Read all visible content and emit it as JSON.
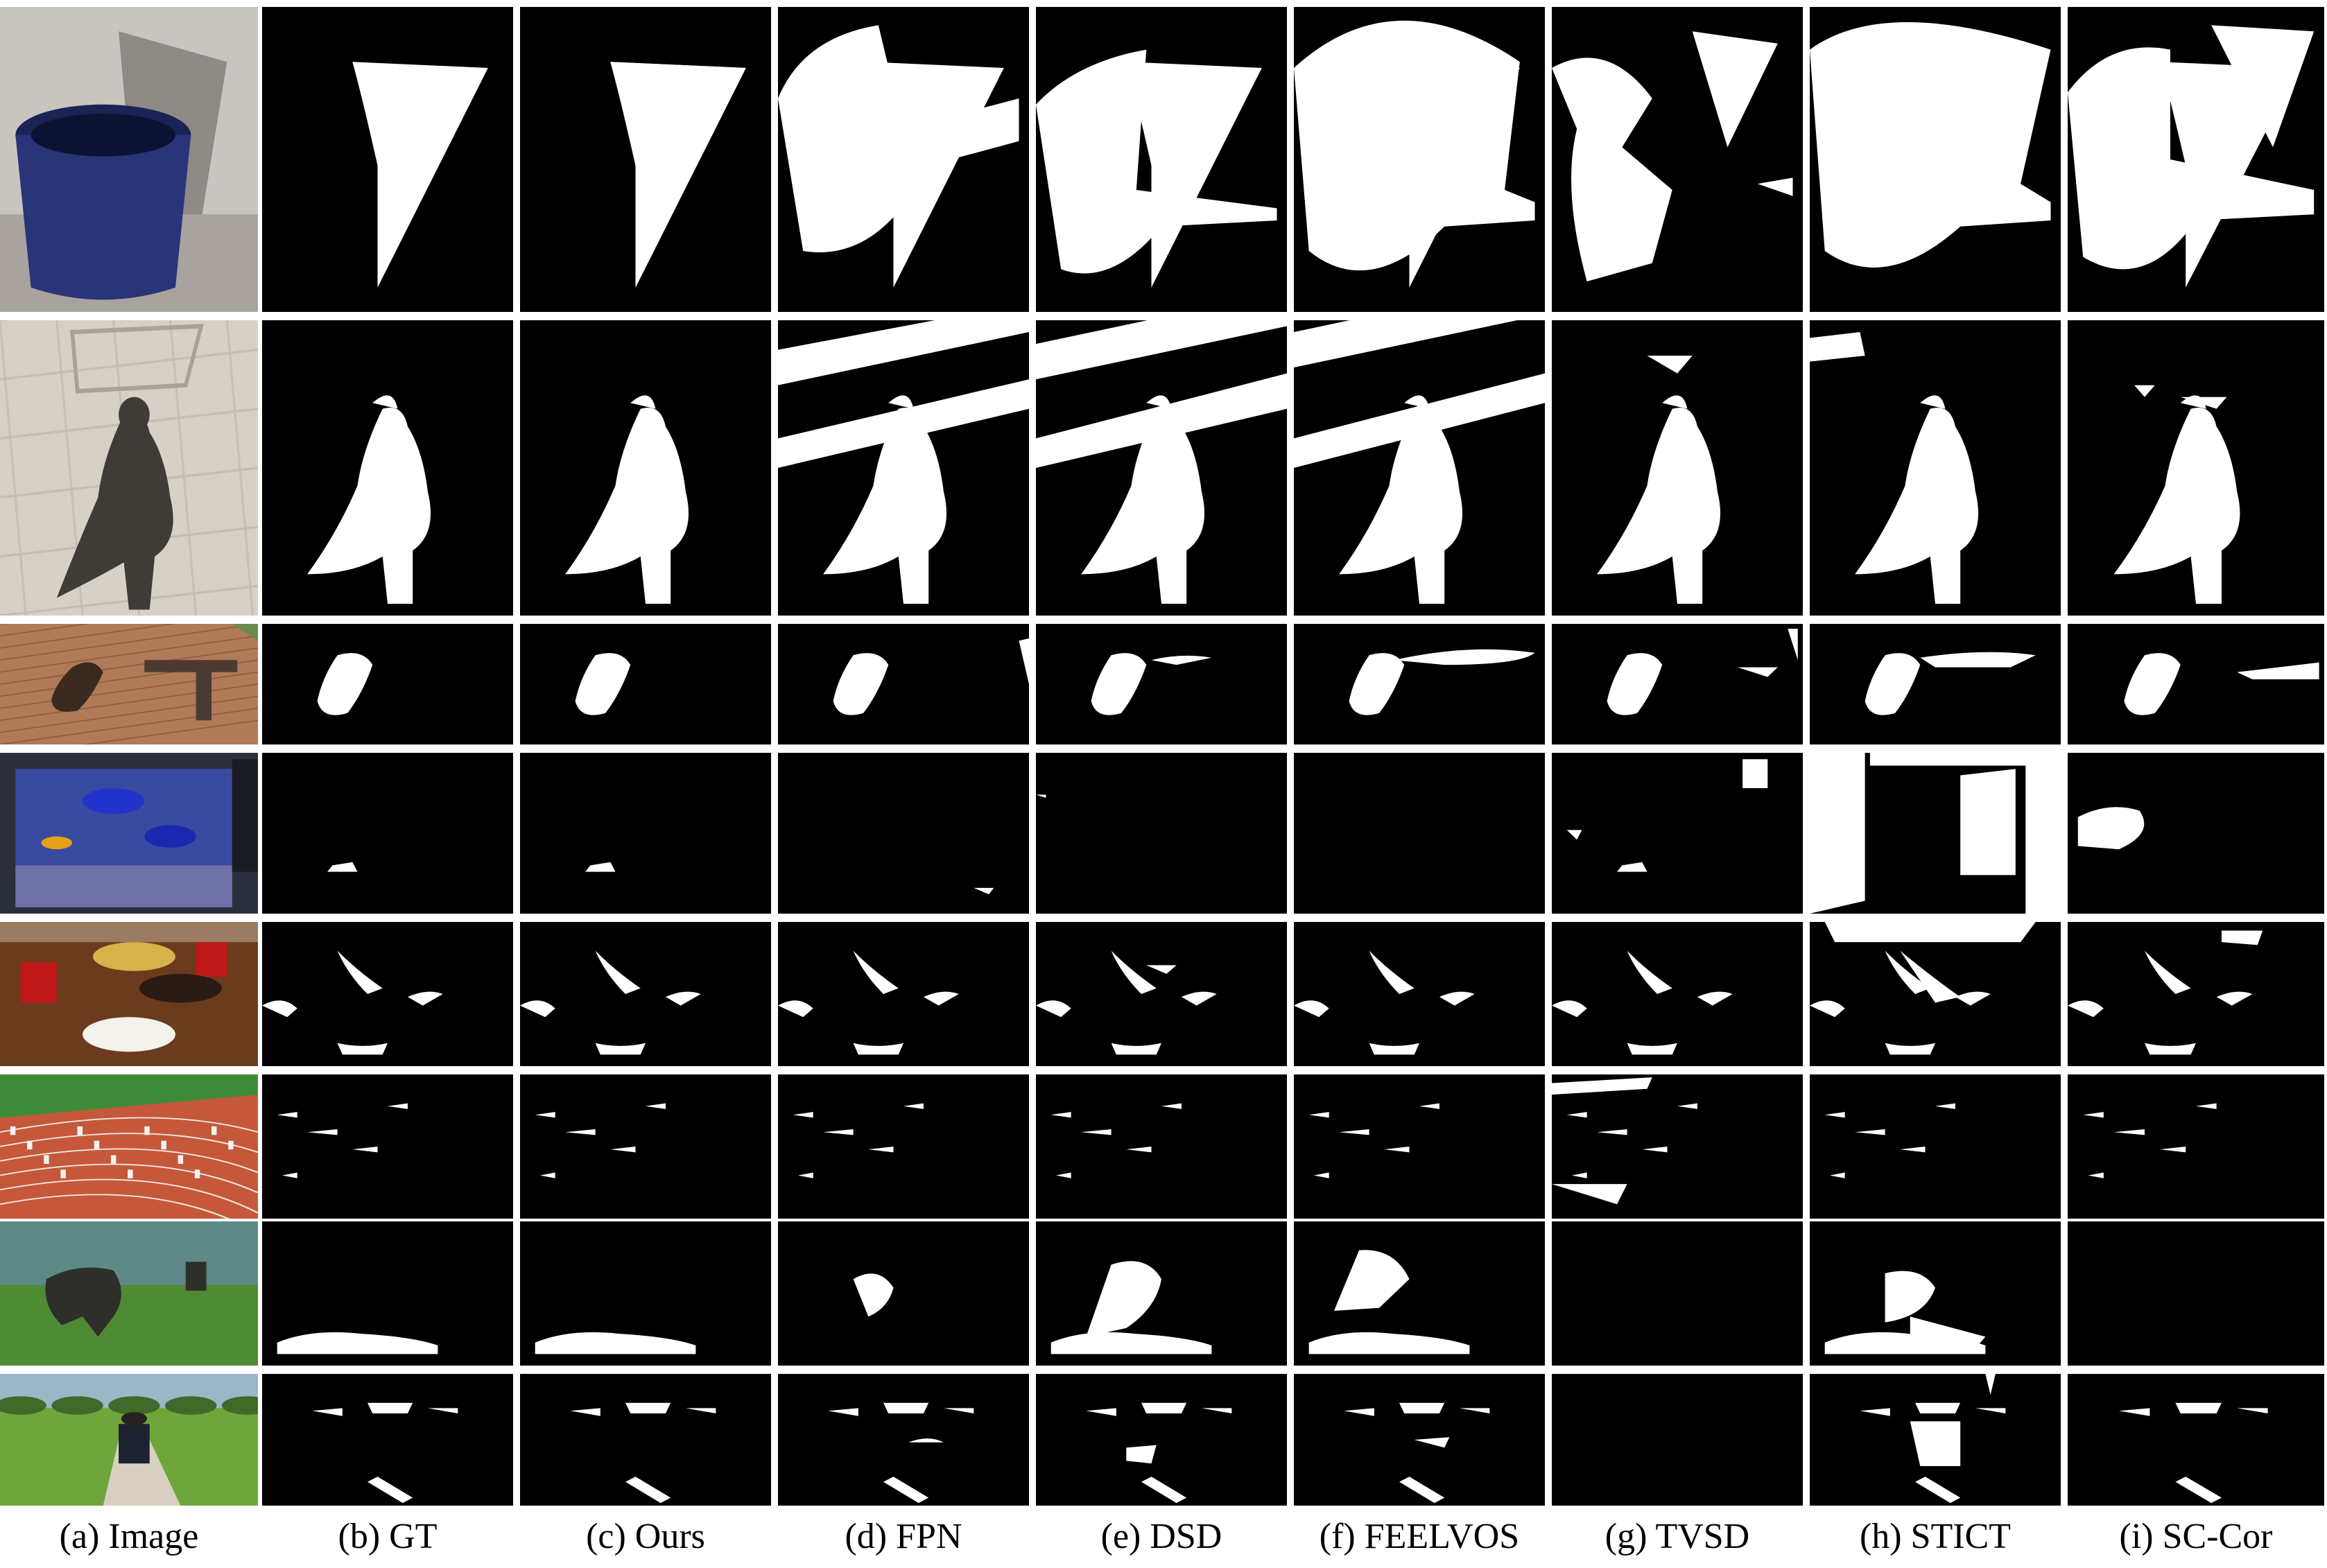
{
  "figure": {
    "columns": [
      {
        "key": "image",
        "label": "(a) Image"
      },
      {
        "key": "gt",
        "label": "(b) GT"
      },
      {
        "key": "ours",
        "label": "(c) Ours"
      },
      {
        "key": "fpn",
        "label": "(d) FPN"
      },
      {
        "key": "dsd",
        "label": "(e) DSD"
      },
      {
        "key": "feelvos",
        "label": "(f) FEELVOS"
      },
      {
        "key": "tvsd",
        "label": "(g) TVSD"
      },
      {
        "key": "stict",
        "label": "(h) STICT"
      },
      {
        "key": "sccor",
        "label": "(i) SC-Cor"
      }
    ],
    "rows": [
      {
        "scene": "blue bucket with shadow on wall"
      },
      {
        "scene": "person shadow on tiled floor"
      },
      {
        "scene": "walker shadow on brick pavement"
      },
      {
        "scene": "aquarium with fish"
      },
      {
        "scene": "table with cans and food"
      },
      {
        "scene": "running track with athletes"
      },
      {
        "scene": "gorilla on grass"
      },
      {
        "scene": "person walking in park"
      }
    ],
    "colors": {
      "background": "#ffffff",
      "mask_bg": "#000000",
      "mask_fg": "#ffffff"
    }
  }
}
